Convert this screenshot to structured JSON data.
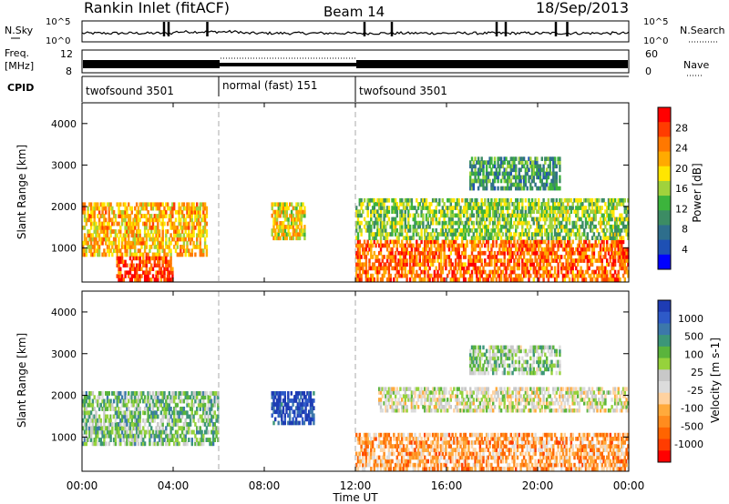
{
  "header": {
    "station": "Rankin Inlet (fitACF)",
    "beam": "Beam 14",
    "date": "18/Sep/2013"
  },
  "noise_panel": {
    "left_label": "N.Sky",
    "right_label": "N.Search",
    "left_ticks": [
      "10^5",
      "10^0"
    ],
    "right_ticks": [
      "10^5",
      "10^0"
    ]
  },
  "freq_panel": {
    "left_label_line1": "Freq.",
    "left_label_line2": "[MHz]",
    "left_ticks": [
      "12",
      "8"
    ],
    "right_label": "Nave",
    "right_ticks": [
      "60",
      "0"
    ]
  },
  "cpid_panel": {
    "label": "CPID",
    "segments": [
      {
        "name": "twofsound 3501",
        "start_hour": 0,
        "end_hour": 6
      },
      {
        "name": "normal (fast) 151",
        "start_hour": 6,
        "end_hour": 12
      },
      {
        "name": "twofsound 3501",
        "start_hour": 12,
        "end_hour": 24
      }
    ]
  },
  "power_panel": {
    "ylabel": "Slant Range [km]",
    "yticks": [
      1000,
      2000,
      3000,
      4000
    ],
    "colorbar_label": "Power [dB]",
    "colorbar_ticks": [
      "28",
      "24",
      "20",
      "16",
      "12",
      "8",
      "4"
    ],
    "colorbar_colors": [
      "#ff0000",
      "#ff3c00",
      "#ff7800",
      "#ffaa00",
      "#ffe600",
      "#a0d23c",
      "#3cb43c",
      "#3c8c64",
      "#2e6e8c",
      "#1e50b4",
      "#0000ff"
    ]
  },
  "velocity_panel": {
    "ylabel": "Slant Range [km]",
    "yticks": [
      1000,
      2000,
      3000,
      4000
    ],
    "colorbar_label": "Velocity [m s-1]",
    "colorbar_ticks": [
      "1000",
      "500",
      "100",
      "25",
      "-25",
      "-100",
      "-500",
      "-1000"
    ],
    "colorbar_colors": [
      "#1e3cb4",
      "#2e5ac8",
      "#3c78aa",
      "#3c9678",
      "#5ab43c",
      "#96d23c",
      "#c8c8c8",
      "#dcdcdc",
      "#ffd2a0",
      "#ffaa3c",
      "#ff8c1e",
      "#ff6400",
      "#ff3c00",
      "#ff0000"
    ]
  },
  "xaxis": {
    "label": "Time UT",
    "ticks": [
      "00:00",
      "04:00",
      "08:00",
      "12:00",
      "16:00",
      "20:00",
      "00:00"
    ]
  },
  "chart_data": [
    {
      "type": "heatmap",
      "title": "Rankin Inlet (fitACF)  Beam 14  18/Sep/2013",
      "xlabel": "Time UT",
      "ylabel": "Slant Range [km]",
      "colorbar": "Power [dB]",
      "xlim": [
        0,
        24
      ],
      "ylim": [
        180,
        4500
      ],
      "clim": [
        0,
        30
      ],
      "regions": [
        {
          "t0": 0.0,
          "t1": 5.5,
          "r0": 800,
          "r1": 2100,
          "level": 20
        },
        {
          "t0": 1.5,
          "t1": 4.0,
          "r0": 200,
          "r1": 800,
          "level": 26
        },
        {
          "t0": 8.3,
          "t1": 9.8,
          "r0": 1200,
          "r1": 2100,
          "level": 18
        },
        {
          "t0": 12.0,
          "t1": 24.0,
          "r0": 200,
          "r1": 1200,
          "level": 24
        },
        {
          "t0": 12.0,
          "t1": 24.0,
          "r0": 1200,
          "r1": 2200,
          "level": 14
        },
        {
          "t0": 17.0,
          "t1": 21.0,
          "r0": 2400,
          "r1": 3200,
          "level": 10
        }
      ]
    },
    {
      "type": "heatmap",
      "title": "Rankin Inlet (fitACF)  Beam 14  18/Sep/2013",
      "xlabel": "Time UT",
      "ylabel": "Slant Range [km]",
      "colorbar": "Velocity [m s-1]",
      "xlim": [
        0,
        24
      ],
      "ylim": [
        180,
        4500
      ],
      "clim": [
        -1000,
        1000
      ],
      "regions": [
        {
          "t0": 0.0,
          "t1": 6.0,
          "r0": 800,
          "r1": 2100,
          "level": 300
        },
        {
          "t0": 8.3,
          "t1": 10.2,
          "r0": 1300,
          "r1": 2100,
          "level": 900
        },
        {
          "t0": 12.0,
          "t1": 24.0,
          "r0": 200,
          "r1": 1100,
          "level": -400
        },
        {
          "t0": 13.0,
          "t1": 24.0,
          "r0": 1600,
          "r1": 2200,
          "level": 0
        },
        {
          "t0": 17.0,
          "t1": 21.0,
          "r0": 2500,
          "r1": 3200,
          "level": 200
        }
      ]
    }
  ]
}
